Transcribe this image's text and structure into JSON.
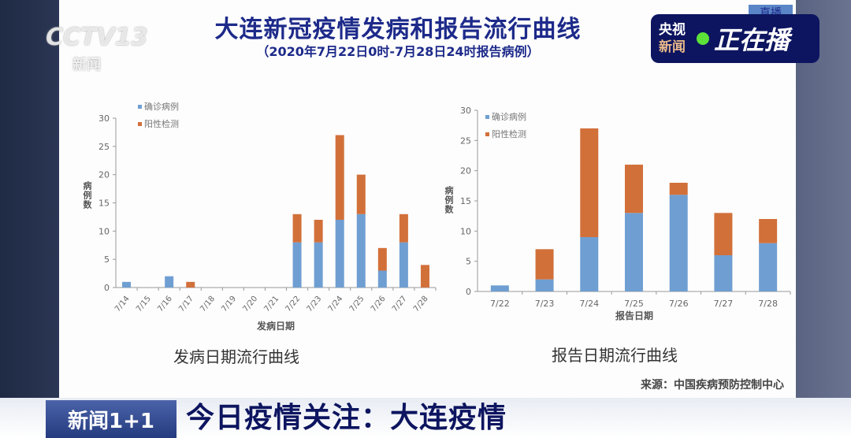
{
  "title": "大连新冠疫情发病和报告流行曲线",
  "subtitle": "（2020年7月22日0时-7月28日24时报告病例）",
  "logo": {
    "brand": "CCTV13",
    "sub": "新闻"
  },
  "live_badge": {
    "channel_line1": "央视",
    "channel_line2": "新闻",
    "label": "正在播",
    "tab": "直播"
  },
  "source": "来源：中国疾病预防控制中心",
  "lower_third": {
    "show": "新闻1+1",
    "topic": "今日疫情关注：大连疫情"
  },
  "colors": {
    "confirmed": "#6f9fd2",
    "positive": "#d2703a"
  },
  "chart_data": [
    {
      "type": "bar",
      "stacked": true,
      "title": "发病日期流行曲线",
      "xlabel": "发病日期",
      "ylabel": "病例数",
      "ylim": [
        0,
        30
      ],
      "yticks": [
        0,
        5,
        10,
        15,
        20,
        25,
        30
      ],
      "legend": "top-left",
      "categories": [
        "7/14",
        "7/15",
        "7/16",
        "7/17",
        "7/18",
        "7/19",
        "7/20",
        "7/21",
        "7/22",
        "7/23",
        "7/24",
        "7/25",
        "7/26",
        "7/27",
        "7/28"
      ],
      "series": [
        {
          "name": "确诊病例",
          "values": [
            1,
            0,
            2,
            0,
            0,
            0,
            0,
            0,
            8,
            8,
            12,
            13,
            3,
            8,
            0
          ]
        },
        {
          "name": "阳性检测",
          "values": [
            0,
            0,
            0,
            1,
            0,
            0,
            0,
            0,
            5,
            4,
            15,
            7,
            4,
            5,
            4
          ]
        }
      ]
    },
    {
      "type": "bar",
      "stacked": true,
      "title": "报告日期流行曲线",
      "xlabel": "报告日期",
      "ylabel": "病例数",
      "ylim": [
        0,
        30
      ],
      "yticks": [
        0,
        5,
        10,
        15,
        20,
        25,
        30
      ],
      "legend": "top-left",
      "categories": [
        "7/22",
        "7/23",
        "7/24",
        "7/25",
        "7/26",
        "7/27",
        "7/28"
      ],
      "series": [
        {
          "name": "确诊病例",
          "values": [
            1,
            2,
            9,
            13,
            16,
            6,
            8
          ]
        },
        {
          "name": "阳性检测",
          "values": [
            0,
            5,
            18,
            8,
            2,
            7,
            4
          ]
        }
      ]
    }
  ]
}
